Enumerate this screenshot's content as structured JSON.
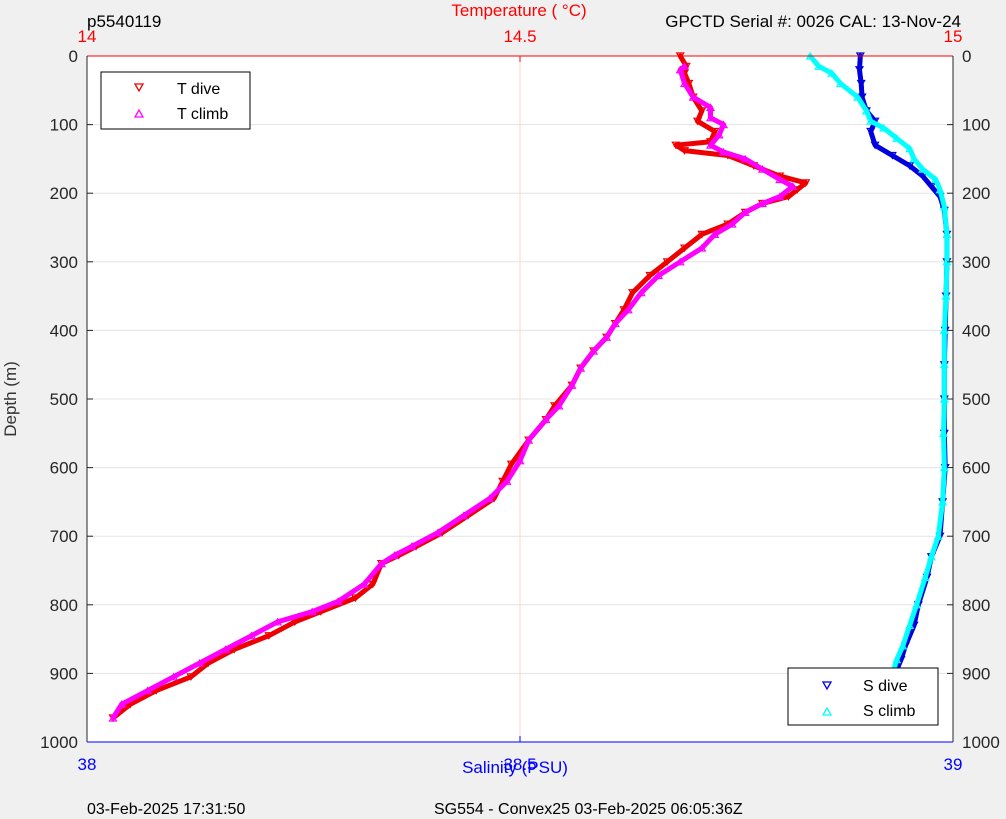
{
  "header": {
    "left": "p5540119",
    "right": "GPCTD Serial #: 0026 CAL: 13-Nov-24"
  },
  "footer": {
    "left": "03-Feb-2025 17:31:50",
    "center": "SG554 - Convex25 03-Feb-2025 06:05:36Z"
  },
  "colors": {
    "temperature": "#ff0000",
    "salinity": "#0000ff",
    "t_dive": "#ee0000",
    "t_climb": "#ff00ff",
    "s_dive": "#0000dd",
    "s_climb": "#00ffff"
  },
  "chart_data": {
    "type": "scatter",
    "ylabel": "Depth (m)",
    "y_reversed": true,
    "ylim": [
      0,
      1000
    ],
    "y_ticks": [
      "0",
      "100",
      "200",
      "300",
      "400",
      "500",
      "600",
      "700",
      "800",
      "900",
      "1000"
    ],
    "top_axis": {
      "label": "Temperature (   °C)",
      "xlim": [
        14,
        15
      ],
      "ticks": [
        "14",
        "14.5",
        "15"
      ]
    },
    "bottom_axis": {
      "label": "Salinity (PSU)",
      "xlim": [
        38,
        39
      ],
      "ticks": [
        "38",
        "38.5",
        "39"
      ]
    },
    "grid": true,
    "legend_top": {
      "placement": "top-left",
      "entries": [
        "T dive",
        "T climb"
      ]
    },
    "legend_bottom": {
      "placement": "bottom-right",
      "entries": [
        "S dive",
        "S climb"
      ]
    },
    "series": [
      {
        "name": "T dive",
        "axis": "temperature",
        "marker": "down-triangle",
        "points": [
          [
            14.685,
            0
          ],
          [
            14.692,
            15
          ],
          [
            14.69,
            25
          ],
          [
            14.695,
            40
          ],
          [
            14.7,
            60
          ],
          [
            14.71,
            80
          ],
          [
            14.705,
            95
          ],
          [
            14.725,
            110
          ],
          [
            14.72,
            125
          ],
          [
            14.68,
            130
          ],
          [
            14.69,
            138
          ],
          [
            14.74,
            145
          ],
          [
            14.77,
            160
          ],
          [
            14.8,
            175
          ],
          [
            14.83,
            185
          ],
          [
            14.82,
            195
          ],
          [
            14.81,
            205
          ],
          [
            14.78,
            215
          ],
          [
            14.76,
            228
          ],
          [
            14.74,
            245
          ],
          [
            14.71,
            260
          ],
          [
            14.69,
            280
          ],
          [
            14.67,
            300
          ],
          [
            14.65,
            320
          ],
          [
            14.63,
            345
          ],
          [
            14.62,
            370
          ],
          [
            14.61,
            390
          ],
          [
            14.6,
            410
          ],
          [
            14.585,
            430
          ],
          [
            14.57,
            455
          ],
          [
            14.56,
            480
          ],
          [
            14.54,
            510
          ],
          [
            14.53,
            530
          ],
          [
            14.51,
            560
          ],
          [
            14.49,
            595
          ],
          [
            14.48,
            620
          ],
          [
            14.47,
            645
          ],
          [
            14.44,
            670
          ],
          [
            14.41,
            695
          ],
          [
            14.38,
            715
          ],
          [
            14.36,
            728
          ],
          [
            14.34,
            740
          ],
          [
            14.33,
            770
          ],
          [
            14.31,
            790
          ],
          [
            14.27,
            810
          ],
          [
            14.24,
            825
          ],
          [
            14.21,
            845
          ],
          [
            14.17,
            865
          ],
          [
            14.14,
            885
          ],
          [
            14.12,
            905
          ],
          [
            14.08,
            925
          ],
          [
            14.05,
            945
          ],
          [
            14.03,
            965
          ]
        ]
      },
      {
        "name": "T climb",
        "axis": "temperature",
        "marker": "up-triangle",
        "points": [
          [
            14.69,
            15
          ],
          [
            14.685,
            20
          ],
          [
            14.69,
            40
          ],
          [
            14.7,
            60
          ],
          [
            14.72,
            75
          ],
          [
            14.72,
            90
          ],
          [
            14.735,
            100
          ],
          [
            14.73,
            115
          ],
          [
            14.72,
            130
          ],
          [
            14.735,
            140
          ],
          [
            14.76,
            150
          ],
          [
            14.78,
            165
          ],
          [
            14.8,
            180
          ],
          [
            14.815,
            190
          ],
          [
            14.8,
            205
          ],
          [
            14.78,
            215
          ],
          [
            14.76,
            228
          ],
          [
            14.745,
            245
          ],
          [
            14.725,
            260
          ],
          [
            14.71,
            280
          ],
          [
            14.685,
            300
          ],
          [
            14.66,
            320
          ],
          [
            14.64,
            345
          ],
          [
            14.625,
            370
          ],
          [
            14.61,
            390
          ],
          [
            14.6,
            410
          ],
          [
            14.585,
            430
          ],
          [
            14.57,
            455
          ],
          [
            14.56,
            480
          ],
          [
            14.545,
            510
          ],
          [
            14.53,
            530
          ],
          [
            14.51,
            560
          ],
          [
            14.5,
            590
          ],
          [
            14.485,
            620
          ],
          [
            14.465,
            645
          ],
          [
            14.435,
            670
          ],
          [
            14.405,
            695
          ],
          [
            14.375,
            715
          ],
          [
            14.355,
            728
          ],
          [
            14.34,
            740
          ],
          [
            14.32,
            770
          ],
          [
            14.29,
            795
          ],
          [
            14.26,
            810
          ],
          [
            14.22,
            825
          ],
          [
            14.19,
            845
          ],
          [
            14.16,
            865
          ],
          [
            14.13,
            885
          ],
          [
            14.1,
            905
          ],
          [
            14.07,
            925
          ],
          [
            14.04,
            945
          ],
          [
            14.03,
            965
          ]
        ]
      },
      {
        "name": "S dive",
        "axis": "salinity",
        "marker": "down-triangle",
        "points": [
          [
            38.893,
            0
          ],
          [
            38.892,
            20
          ],
          [
            38.894,
            40
          ],
          [
            38.895,
            60
          ],
          [
            38.9,
            80
          ],
          [
            38.91,
            95
          ],
          [
            38.905,
            110
          ],
          [
            38.91,
            130
          ],
          [
            38.93,
            145
          ],
          [
            38.95,
            160
          ],
          [
            38.965,
            175
          ],
          [
            38.975,
            190
          ],
          [
            38.985,
            205
          ],
          [
            38.99,
            225
          ],
          [
            38.993,
            260
          ],
          [
            38.993,
            300
          ],
          [
            38.992,
            350
          ],
          [
            38.991,
            400
          ],
          [
            38.99,
            450
          ],
          [
            38.99,
            500
          ],
          [
            38.99,
            550
          ],
          [
            38.991,
            600
          ],
          [
            38.988,
            650
          ],
          [
            38.985,
            700
          ],
          [
            38.975,
            730
          ],
          [
            38.97,
            760
          ],
          [
            38.96,
            800
          ],
          [
            38.955,
            830
          ],
          [
            38.945,
            860
          ],
          [
            38.94,
            880
          ],
          [
            38.93,
            910
          ],
          [
            38.92,
            940
          ],
          [
            38.915,
            965
          ]
        ]
      },
      {
        "name": "S climb",
        "axis": "salinity",
        "marker": "up-triangle",
        "points": [
          [
            38.835,
            0
          ],
          [
            38.845,
            15
          ],
          [
            38.86,
            25
          ],
          [
            38.87,
            40
          ],
          [
            38.89,
            60
          ],
          [
            38.9,
            80
          ],
          [
            38.905,
            95
          ],
          [
            38.92,
            105
          ],
          [
            38.935,
            120
          ],
          [
            38.95,
            135
          ],
          [
            38.955,
            150
          ],
          [
            38.965,
            165
          ],
          [
            38.98,
            180
          ],
          [
            38.985,
            195
          ],
          [
            38.99,
            220
          ],
          [
            38.993,
            260
          ],
          [
            38.993,
            300
          ],
          [
            38.992,
            350
          ],
          [
            38.99,
            400
          ],
          [
            38.99,
            450
          ],
          [
            38.99,
            500
          ],
          [
            38.989,
            550
          ],
          [
            38.99,
            600
          ],
          [
            38.988,
            650
          ],
          [
            38.983,
            700
          ],
          [
            38.975,
            730
          ],
          [
            38.968,
            760
          ],
          [
            38.958,
            800
          ],
          [
            38.95,
            830
          ],
          [
            38.942,
            860
          ],
          [
            38.935,
            880
          ],
          [
            38.928,
            910
          ],
          [
            38.92,
            940
          ],
          [
            38.915,
            965
          ]
        ]
      }
    ]
  }
}
